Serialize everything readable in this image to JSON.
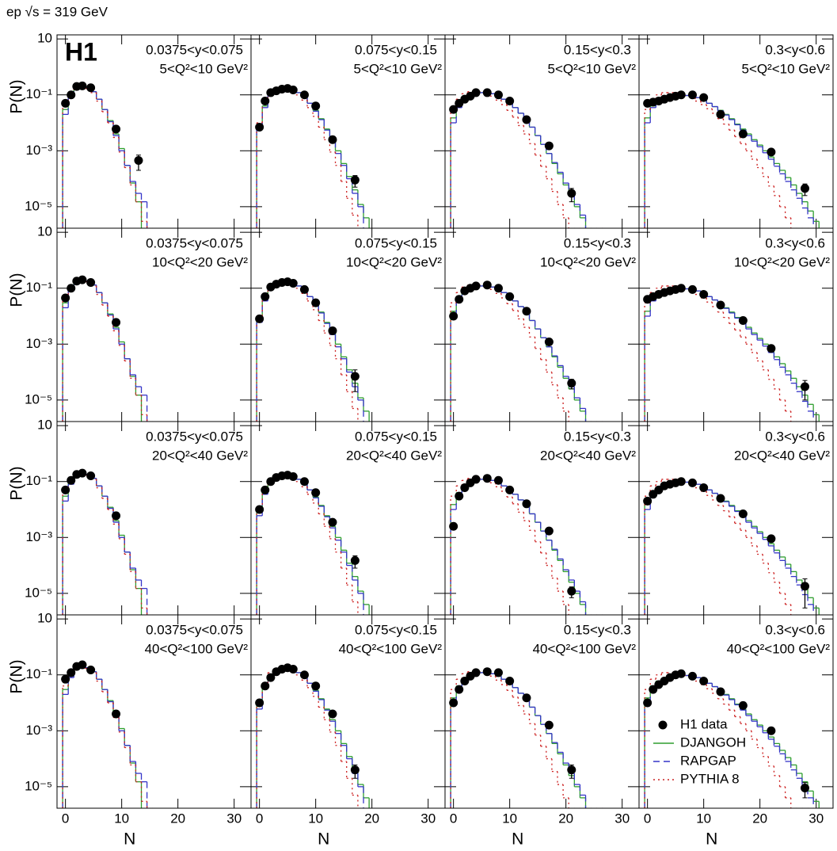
{
  "chart_data": {
    "type": "step-grid",
    "title": "ep √s = 319 GeV",
    "logo": "H1",
    "x_label": "N",
    "y_label": "P(N)",
    "xlim": [
      -1.5,
      33
    ],
    "ylim": [
      1.7e-06,
      14
    ],
    "log_y": true,
    "xticks": [
      0,
      10,
      20,
      30
    ],
    "yticks": [
      10,
      {
        "value": 0.1,
        "label": "10⁻¹"
      },
      {
        "value": 0.001,
        "label": "10⁻³"
      },
      {
        "value": 1e-05,
        "label": "10⁻⁵"
      }
    ],
    "y_ranges": [
      "0.0375<y<0.075",
      "0.075<y<0.15",
      "0.15<y<0.3",
      "0.3<y<0.6"
    ],
    "q2_ranges": [
      "5<Q²<10 GeV²",
      "10<Q²<20 GeV²",
      "20<Q²<40 GeV²",
      "40<Q²<100 GeV²"
    ],
    "legend": "lower right",
    "series": [
      {
        "name": "H1 data",
        "color": "#000000",
        "style": "marker"
      },
      {
        "name": "DJANGOH",
        "color": "#2e9e2e",
        "style": "solid"
      },
      {
        "name": "RAPGAP",
        "color": "#3535c8",
        "style": "dashed"
      },
      {
        "name": "PYTHIA 8",
        "color": "#cc2020",
        "style": "dotted"
      }
    ],
    "bins": [
      [
        -0.5,
        0.5,
        1.5,
        2.5,
        3.5,
        4.5,
        5.5,
        6.5,
        7.5,
        8.5,
        9.5,
        10.5,
        11.5,
        12.5,
        13.5,
        14.5,
        15.5
      ],
      [
        -0.5,
        0.5,
        1.5,
        2.5,
        3.5,
        4.5,
        5.5,
        6.5,
        7.5,
        8.5,
        9.5,
        10.5,
        11.5,
        12.5,
        13.5,
        14.5,
        15.5,
        16.5,
        17.5,
        18.5,
        19.5,
        20.5
      ],
      [
        -0.5,
        0.5,
        1.5,
        2.5,
        3.5,
        4.5,
        5.5,
        6.5,
        7.5,
        8.5,
        9.5,
        10.5,
        11.5,
        12.5,
        13.5,
        14.5,
        15.5,
        16.5,
        17.5,
        18.5,
        19.5,
        20.5,
        21.5,
        22.5,
        23.5,
        24.5,
        25.5,
        26.5
      ],
      [
        -0.5,
        0.5,
        1.5,
        2.5,
        3.5,
        4.5,
        5.5,
        6.5,
        7.5,
        8.5,
        9.5,
        10.5,
        11.5,
        12.5,
        13.5,
        14.5,
        15.5,
        16.5,
        17.5,
        18.5,
        19.5,
        20.5,
        21.5,
        22.5,
        23.5,
        24.5,
        25.5,
        26.5,
        27.5,
        28.5,
        29.5,
        30.5
      ]
    ],
    "models": [
      [
        [
          0.03,
          0.09,
          0.17,
          0.2,
          0.18,
          0.13,
          0.07,
          0.03,
          0.012,
          0.004,
          0.0012,
          0.0003,
          7e-05,
          1.5e-05,
          null,
          null
        ],
        [
          0.02,
          0.08,
          0.16,
          0.2,
          0.18,
          0.13,
          0.07,
          0.03,
          0.011,
          0.0035,
          0.001,
          0.0003,
          8e-05,
          3e-05,
          1.5e-05,
          null
        ],
        [
          0.04,
          0.1,
          0.18,
          0.2,
          0.17,
          0.12,
          0.06,
          0.025,
          0.01,
          0.003,
          0.0009,
          0.00025,
          6e-05,
          1.5e-05,
          3e-06,
          null
        ]
      ],
      [
        [
          0.008,
          0.04,
          0.1,
          0.14,
          0.16,
          0.17,
          0.15,
          0.12,
          0.08,
          0.05,
          0.028,
          0.014,
          0.006,
          0.0025,
          0.001,
          0.00035,
          0.00012,
          4e-05,
          1.2e-05,
          4e-06,
          null
        ],
        [
          0.006,
          0.035,
          0.1,
          0.14,
          0.16,
          0.17,
          0.15,
          0.12,
          0.08,
          0.05,
          0.026,
          0.013,
          0.0055,
          0.0022,
          0.0008,
          0.0003,
          0.0001,
          3e-05,
          1e-05,
          null,
          null
        ],
        [
          0.01,
          0.05,
          0.12,
          0.16,
          0.18,
          0.17,
          0.14,
          0.1,
          0.065,
          0.035,
          0.017,
          0.007,
          0.0025,
          0.0009,
          0.0003,
          8e-05,
          2e-05,
          5e-06,
          null,
          null,
          null
        ]
      ],
      [
        [
          0.015,
          0.04,
          0.07,
          0.09,
          0.11,
          0.12,
          0.12,
          0.11,
          0.09,
          0.07,
          0.05,
          0.035,
          0.022,
          0.013,
          0.007,
          0.0035,
          0.0017,
          0.0008,
          0.00035,
          0.00015,
          6e-05,
          2.5e-05,
          1e-05,
          4e-06,
          null,
          null,
          null
        ],
        [
          0.01,
          0.035,
          0.065,
          0.09,
          0.11,
          0.12,
          0.12,
          0.11,
          0.09,
          0.07,
          0.05,
          0.035,
          0.022,
          0.013,
          0.007,
          0.0035,
          0.0017,
          0.0008,
          0.00038,
          0.00017,
          7e-05,
          3e-05,
          1.2e-05,
          5e-06,
          null,
          null,
          null
        ],
        [
          0.03,
          0.07,
          0.11,
          0.13,
          0.14,
          0.13,
          0.11,
          0.09,
          0.065,
          0.045,
          0.028,
          0.016,
          0.008,
          0.004,
          0.0018,
          0.0007,
          0.00028,
          0.0001,
          3.5e-05,
          1.2e-05,
          4e-06,
          null,
          null,
          null,
          null,
          null,
          null
        ]
      ],
      [
        [
          0.015,
          0.04,
          0.06,
          0.07,
          0.08,
          0.09,
          0.095,
          0.095,
          0.09,
          0.08,
          0.065,
          0.05,
          0.038,
          0.028,
          0.02,
          0.014,
          0.009,
          0.006,
          0.004,
          0.0025,
          0.0016,
          0.001,
          0.0006,
          0.00035,
          0.0002,
          0.00011,
          6e-05,
          3e-05,
          1.5e-05,
          7e-06,
          3e-06
        ],
        [
          0.01,
          0.035,
          0.055,
          0.07,
          0.08,
          0.09,
          0.095,
          0.095,
          0.09,
          0.08,
          0.065,
          0.05,
          0.038,
          0.027,
          0.019,
          0.013,
          0.0085,
          0.0055,
          0.0035,
          0.0022,
          0.0014,
          0.00085,
          0.0005,
          0.00028,
          0.00015,
          8e-05,
          4e-05,
          2e-05,
          9e-06,
          4e-06,
          null
        ],
        [
          0.03,
          0.07,
          0.1,
          0.12,
          0.12,
          0.12,
          0.11,
          0.095,
          0.08,
          0.06,
          0.045,
          0.032,
          0.022,
          0.014,
          0.009,
          0.0055,
          0.0032,
          0.0018,
          0.001,
          0.0005,
          0.00025,
          0.00012,
          5.5e-05,
          2.5e-05,
          1e-05,
          4e-06,
          null,
          null,
          null,
          null,
          null
        ]
      ]
    ],
    "data": [
      [
        {
          "x": [
            0,
            1,
            2,
            3,
            4.5,
            9,
            13
          ],
          "values": [
            0.05,
            0.1,
            0.2,
            0.21,
            0.18,
            0.006,
            0.00045
          ],
          "errors": [
            null,
            null,
            null,
            null,
            null,
            null,
            0.00025
          ]
        },
        {
          "x": [
            0,
            1,
            2,
            3,
            4,
            5,
            6,
            8,
            10,
            13,
            17
          ],
          "values": [
            0.007,
            0.06,
            0.12,
            0.14,
            0.16,
            0.17,
            0.15,
            0.1,
            0.04,
            0.0025,
            9e-05
          ],
          "errors": [
            null,
            null,
            null,
            null,
            null,
            null,
            null,
            null,
            null,
            null,
            4e-05
          ]
        },
        {
          "x": [
            0,
            1,
            2,
            3,
            4,
            6,
            8,
            10,
            13,
            17,
            21
          ],
          "values": [
            0.03,
            0.05,
            0.07,
            0.09,
            0.12,
            0.12,
            0.1,
            0.06,
            0.013,
            0.0015,
            3e-05
          ],
          "errors": [
            null,
            null,
            null,
            null,
            null,
            null,
            null,
            null,
            null,
            null,
            1.5e-05
          ]
        },
        {
          "x": [
            0,
            1,
            2,
            3,
            4,
            5,
            6,
            8,
            10,
            13,
            17,
            22,
            28
          ],
          "values": [
            0.05,
            0.055,
            0.06,
            0.07,
            0.08,
            0.09,
            0.1,
            0.1,
            0.08,
            0.02,
            0.004,
            0.0009,
            4.5e-05
          ],
          "errors": [
            null,
            null,
            null,
            null,
            null,
            null,
            null,
            null,
            null,
            null,
            null,
            null,
            2e-05
          ]
        }
      ],
      [
        {
          "x": [
            0,
            1,
            2,
            3,
            4.5,
            9
          ],
          "values": [
            0.045,
            0.1,
            0.18,
            0.2,
            0.16,
            0.006
          ]
        },
        {
          "x": [
            0,
            1,
            2,
            3,
            4,
            5,
            6,
            8,
            10,
            13,
            17
          ],
          "values": [
            0.008,
            0.05,
            0.11,
            0.14,
            0.16,
            0.17,
            0.15,
            0.09,
            0.03,
            0.003,
            7e-05
          ],
          "errors": [
            null,
            null,
            null,
            null,
            null,
            null,
            null,
            null,
            null,
            null,
            5e-05
          ]
        },
        {
          "x": [
            0,
            1,
            2,
            3,
            4,
            6,
            8,
            10,
            13,
            17,
            21
          ],
          "values": [
            0.01,
            0.04,
            0.08,
            0.1,
            0.12,
            0.13,
            0.1,
            0.05,
            0.015,
            0.0012,
            4e-05
          ],
          "errors": [
            null,
            null,
            null,
            null,
            null,
            null,
            null,
            null,
            null,
            null,
            1.5e-05
          ]
        },
        {
          "x": [
            0,
            1,
            2,
            3,
            4,
            5,
            6,
            8,
            10,
            13,
            17,
            22,
            28
          ],
          "values": [
            0.04,
            0.05,
            0.06,
            0.07,
            0.08,
            0.09,
            0.1,
            0.09,
            0.06,
            0.025,
            0.007,
            0.0007,
            3e-05
          ],
          "errors": [
            null,
            null,
            null,
            null,
            null,
            null,
            null,
            null,
            null,
            null,
            null,
            null,
            2e-05
          ]
        }
      ],
      [
        {
          "x": [
            0,
            1,
            2,
            3,
            4.5,
            9
          ],
          "values": [
            0.05,
            0.11,
            0.18,
            0.2,
            0.16,
            0.006
          ]
        },
        {
          "x": [
            0,
            1,
            2,
            3,
            4,
            5,
            6,
            8,
            10,
            13,
            17
          ],
          "values": [
            0.01,
            0.05,
            0.1,
            0.14,
            0.16,
            0.17,
            0.15,
            0.1,
            0.04,
            0.0035,
            0.00015
          ],
          "errors": [
            null,
            null,
            null,
            null,
            null,
            null,
            null,
            null,
            null,
            null,
            7e-05
          ]
        },
        {
          "x": [
            0,
            1,
            2,
            3,
            4,
            6,
            8,
            10,
            13,
            17,
            21
          ],
          "values": [
            0.0025,
            0.03,
            0.06,
            0.09,
            0.12,
            0.13,
            0.11,
            0.05,
            0.016,
            0.0017,
            1.2e-05
          ],
          "errors": [
            null,
            null,
            null,
            null,
            null,
            null,
            null,
            null,
            null,
            null,
            5e-06
          ]
        },
        {
          "x": [
            0,
            1,
            2,
            3,
            4,
            5,
            6,
            8,
            10,
            13,
            17,
            22,
            28
          ],
          "values": [
            0.02,
            0.035,
            0.05,
            0.07,
            0.08,
            0.09,
            0.1,
            0.09,
            0.06,
            0.025,
            0.007,
            0.0009,
            1.8e-05
          ],
          "errors": [
            null,
            null,
            null,
            null,
            null,
            null,
            null,
            null,
            null,
            null,
            null,
            null,
            1.5e-05
          ]
        }
      ],
      [
        {
          "x": [
            0,
            1,
            2,
            3,
            4.5,
            9
          ],
          "values": [
            0.07,
            0.12,
            0.2,
            0.23,
            0.15,
            0.004
          ]
        },
        {
          "x": [
            0,
            1,
            2,
            3,
            4,
            5,
            6,
            8,
            10,
            13,
            17
          ],
          "values": [
            0.01,
            0.04,
            0.08,
            0.13,
            0.16,
            0.18,
            0.16,
            0.1,
            0.04,
            0.004,
            4e-05
          ],
          "errors": [
            null,
            null,
            null,
            null,
            null,
            null,
            null,
            null,
            null,
            null,
            2e-05
          ]
        },
        {
          "x": [
            0,
            1,
            2,
            3,
            4,
            6,
            8,
            10,
            13,
            17,
            21
          ],
          "values": [
            0.01,
            0.03,
            0.06,
            0.09,
            0.12,
            0.13,
            0.12,
            0.06,
            0.015,
            0.0016,
            4e-05
          ],
          "errors": [
            null,
            null,
            null,
            null,
            null,
            null,
            null,
            null,
            null,
            null,
            2e-05
          ]
        },
        {
          "x": [
            0,
            1,
            2,
            3,
            4,
            5,
            6,
            8,
            10,
            13,
            17,
            22,
            28
          ],
          "values": [
            0.01,
            0.03,
            0.045,
            0.06,
            0.08,
            0.1,
            0.11,
            0.09,
            0.06,
            0.025,
            0.008,
            0.001,
            9e-06
          ],
          "errors": [
            null,
            null,
            null,
            null,
            null,
            null,
            null,
            null,
            null,
            null,
            null,
            null,
            5e-06
          ]
        }
      ]
    ]
  }
}
